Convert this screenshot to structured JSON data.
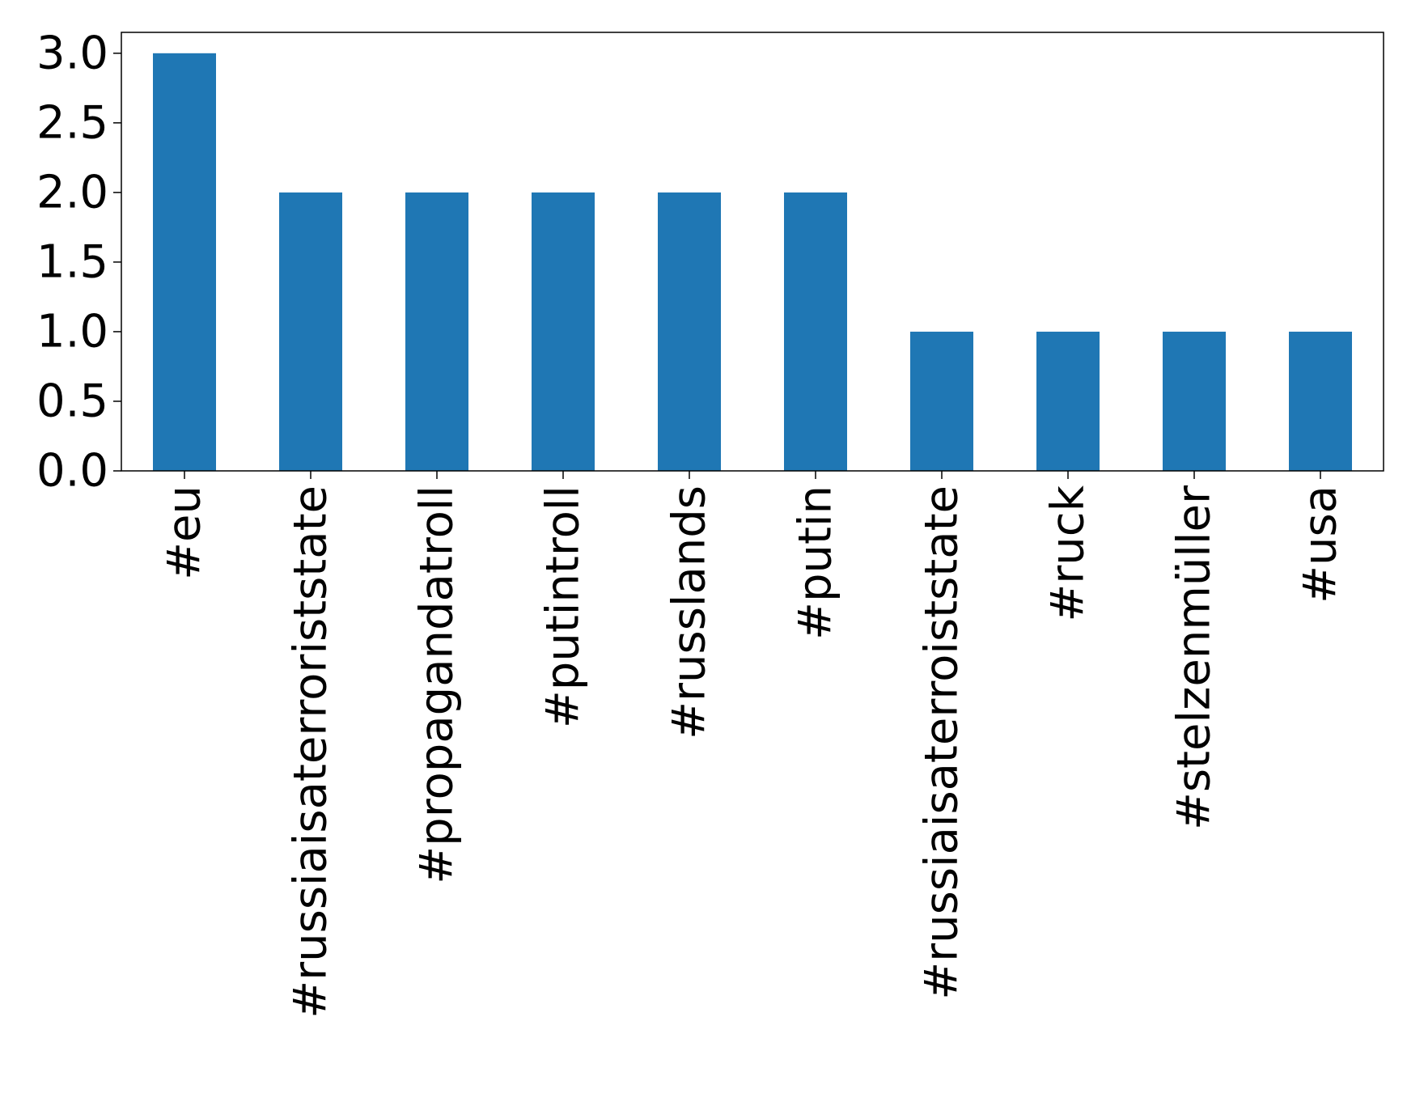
{
  "chart_data": {
    "type": "bar",
    "title": "",
    "xlabel": "",
    "ylabel": "",
    "categories": [
      "#eu",
      "#russiaisaterroriststate",
      "#propagandatroll",
      "#putintroll",
      "#russlands",
      "#putin",
      "#russiaisaterroiststate",
      "#ruck",
      "#stelzenmüller",
      "#usa"
    ],
    "values": [
      3,
      2,
      2,
      2,
      2,
      2,
      1,
      1,
      1,
      1
    ],
    "ylim": [
      0,
      3.15
    ],
    "yticks": [
      0.0,
      0.5,
      1.0,
      1.5,
      2.0,
      2.5,
      3.0
    ],
    "ytick_labels": [
      "0.0",
      "0.5",
      "1.0",
      "1.5",
      "2.0",
      "2.5",
      "3.0"
    ],
    "grid": false,
    "legend": "none",
    "bar_color": "#1f77b4"
  }
}
